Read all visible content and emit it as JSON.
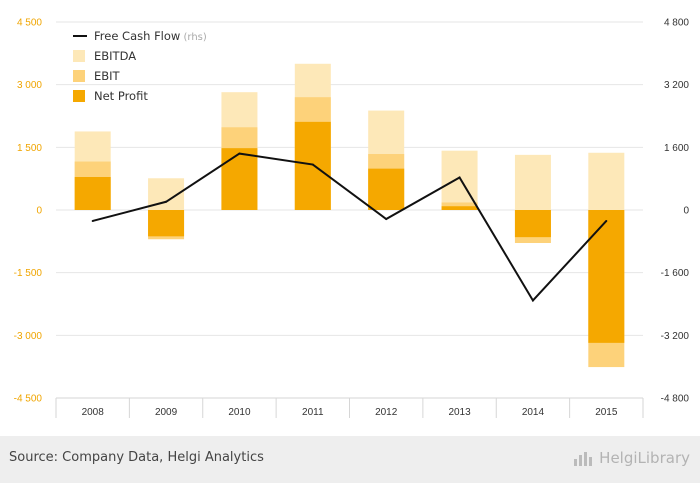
{
  "chart_data": {
    "type": "bar",
    "categories": [
      "2008",
      "2009",
      "2010",
      "2011",
      "2012",
      "2013",
      "2014",
      "2015"
    ],
    "series": [
      {
        "name": "EBITDA",
        "values": [
          1880,
          760,
          2820,
          3500,
          2380,
          1420,
          1320,
          1370
        ],
        "color": "#fde8b8"
      },
      {
        "name": "EBIT",
        "values": [
          1160,
          -700,
          1980,
          2700,
          1340,
          180,
          -790,
          -3760
        ],
        "color": "#fdd27a"
      },
      {
        "name": "Net Profit",
        "values": [
          790,
          -630,
          1480,
          2110,
          990,
          90,
          -650,
          -3180
        ],
        "color": "#f5a800"
      },
      {
        "name": "Free Cash Flow",
        "sub": "(rhs)",
        "axis": "right",
        "values": [
          -280,
          210,
          1440,
          1160,
          -230,
          830,
          -2310,
          -280
        ],
        "color": "#111111"
      }
    ],
    "yleft": {
      "ticks": [
        "4 500",
        "3 000",
        "1 500",
        "0",
        "-1 500",
        "-3 000",
        "-4 500"
      ],
      "range": [
        -4500,
        4500
      ]
    },
    "yright": {
      "ticks": [
        "4 800",
        "3 200",
        "1 600",
        "0",
        "-1 600",
        "-3 200",
        "-4 800"
      ],
      "range": [
        -4800,
        4800
      ]
    },
    "legend_position": "top-left",
    "grid": true
  },
  "footer": {
    "source": "Source: Company Data, Helgi Analytics",
    "brand": "HelgiLibrary"
  }
}
